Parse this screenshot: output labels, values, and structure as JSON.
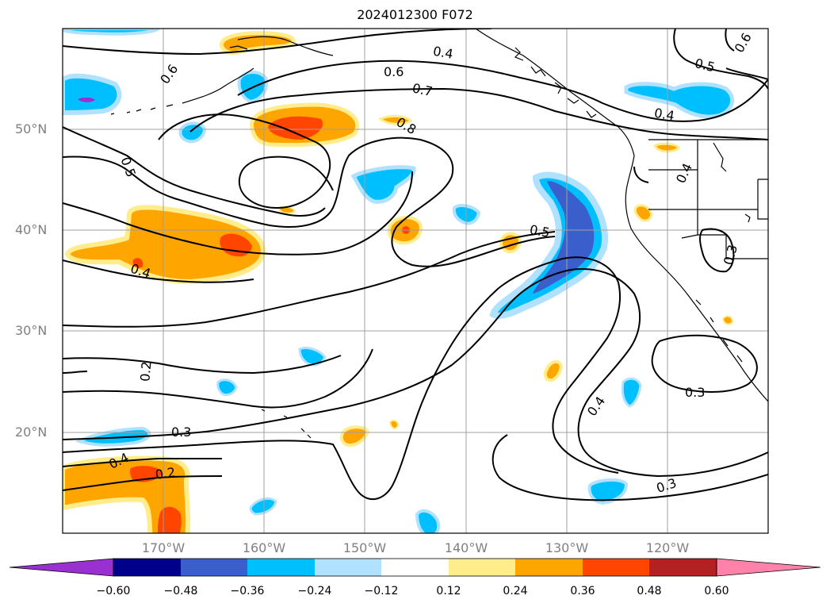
{
  "title": "2024012300 F072",
  "lat_labels": [
    "50°N",
    "40°N",
    "30°N",
    "20°N"
  ],
  "lon_labels": [
    "170°W",
    "160°W",
    "150°W",
    "140°W",
    "130°W",
    "120°W"
  ],
  "contour_labels": [
    "0.6",
    "0.4",
    "0.6",
    "0.7",
    "0.8",
    "0.5",
    "0.4",
    "0.5",
    "0.4",
    "0.5",
    "0.4",
    "0.3",
    "0.2",
    "0.3",
    "0.4",
    "0.2",
    "0.4",
    "0.3",
    "0.3",
    "0.6"
  ],
  "colorbar": {
    "ticks": [
      "−0.60",
      "−0.48",
      "−0.36",
      "−0.24",
      "−0.12",
      "0.12",
      "0.24",
      "0.36",
      "0.48",
      "0.60"
    ],
    "colors": [
      "#9b30d0",
      "#00008b",
      "#3a5fcd",
      "#00bfff",
      "#b0e2ff",
      "#ffffff",
      "#ffec8b",
      "#ffa500",
      "#ff4500",
      "#b22222",
      "#ff82ab"
    ]
  },
  "colors": {
    "contour": "#000000",
    "grid": "#a0a0a0",
    "coast": "#000000"
  }
}
